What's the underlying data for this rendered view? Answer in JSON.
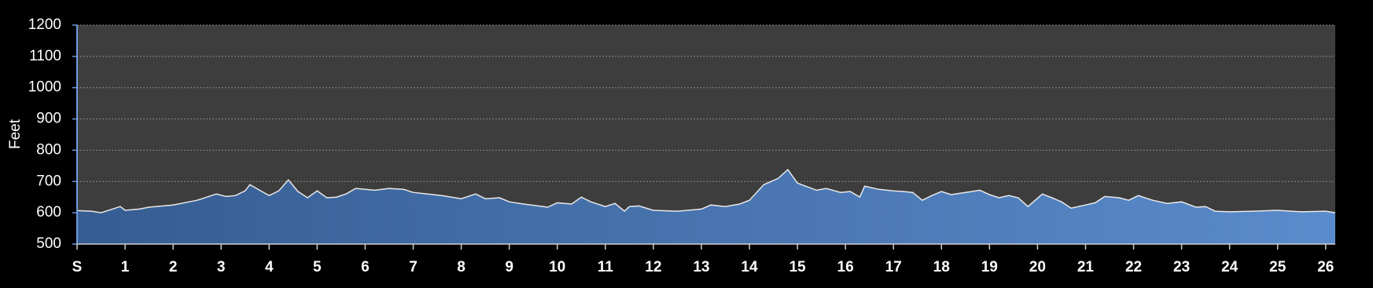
{
  "chart_data": {
    "type": "area",
    "y_label": "Feet",
    "x": [
      0,
      0.3,
      0.5,
      0.7,
      0.9,
      1.0,
      1.3,
      1.5,
      2.0,
      2.5,
      2.9,
      3.1,
      3.3,
      3.5,
      3.6,
      3.8,
      4.0,
      4.2,
      4.4,
      4.6,
      4.8,
      5.0,
      5.2,
      5.4,
      5.6,
      5.8,
      6.0,
      6.2,
      6.5,
      6.8,
      7.0,
      7.3,
      7.6,
      8.0,
      8.3,
      8.5,
      8.8,
      9.0,
      9.3,
      9.6,
      9.8,
      10.0,
      10.3,
      10.5,
      10.7,
      11.0,
      11.2,
      11.4,
      11.5,
      11.7,
      12.0,
      12.5,
      13.0,
      13.2,
      13.5,
      13.8,
      14.0,
      14.3,
      14.6,
      14.8,
      15.0,
      15.4,
      15.6,
      15.9,
      16.1,
      16.3,
      16.4,
      16.7,
      17.0,
      17.2,
      17.4,
      17.6,
      17.8,
      18.0,
      18.2,
      18.5,
      18.8,
      19.0,
      19.2,
      19.4,
      19.6,
      19.8,
      20.1,
      20.3,
      20.5,
      20.7,
      21.0,
      21.2,
      21.4,
      21.7,
      21.9,
      22.1,
      22.4,
      22.7,
      23.0,
      23.3,
      23.5,
      23.7,
      24.0,
      24.5,
      25.0,
      25.5,
      26.0,
      26.2
    ],
    "values": [
      607,
      605,
      600,
      610,
      620,
      608,
      612,
      618,
      625,
      640,
      660,
      652,
      655,
      670,
      690,
      672,
      655,
      670,
      705,
      668,
      648,
      670,
      648,
      650,
      660,
      678,
      675,
      672,
      678,
      675,
      665,
      660,
      655,
      645,
      660,
      645,
      648,
      635,
      628,
      622,
      618,
      632,
      628,
      650,
      635,
      620,
      630,
      605,
      620,
      622,
      608,
      605,
      612,
      625,
      620,
      628,
      640,
      690,
      710,
      738,
      695,
      672,
      678,
      665,
      668,
      650,
      685,
      675,
      670,
      668,
      665,
      640,
      655,
      668,
      658,
      665,
      672,
      658,
      648,
      655,
      648,
      620,
      660,
      648,
      635,
      615,
      625,
      632,
      652,
      648,
      640,
      655,
      640,
      630,
      635,
      618,
      620,
      605,
      603,
      605,
      608,
      603,
      605,
      600
    ],
    "color": "#4f7fbd",
    "line_color": "#e8e8e8",
    "xlim": [
      0,
      26.2
    ],
    "xticks": [
      {
        "value": 0,
        "label": "S"
      },
      1,
      2,
      3,
      4,
      5,
      6,
      7,
      8,
      9,
      10,
      11,
      12,
      13,
      14,
      15,
      16,
      17,
      18,
      19,
      20,
      21,
      22,
      23,
      24,
      25,
      26
    ],
    "ylim": [
      500,
      1200
    ],
    "yticks": [
      500,
      600,
      700,
      800,
      900,
      1000,
      1100,
      1200
    ],
    "grid": true
  }
}
